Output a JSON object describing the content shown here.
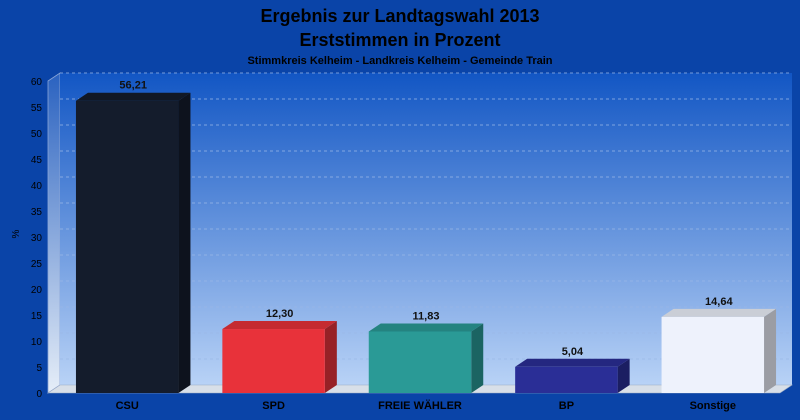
{
  "chart_data": {
    "type": "bar",
    "title": "Ergebnis zur Landtagswahl 2013",
    "subtitle": "Erststimmen in Prozent",
    "subsubtitle": "Stimmkreis Kelheim - Landkreis Kelheim - Gemeinde Train",
    "ylabel": "%",
    "xlabel": "",
    "ylim": [
      0,
      60
    ],
    "yticks": [
      "0",
      "5",
      "10",
      "15",
      "20",
      "25",
      "30",
      "35",
      "40",
      "45",
      "50",
      "55",
      "60"
    ],
    "categories": [
      "CSU",
      "SPD",
      "FREIE WÄHLER",
      "BP",
      "Sonstige"
    ],
    "values": [
      56.21,
      12.3,
      11.83,
      5.04,
      14.64
    ],
    "value_labels": [
      "56,21",
      "12,30",
      "11,83",
      "5,04",
      "14,64"
    ],
    "colors": [
      "#141c2c",
      "#e8323a",
      "#2a9a96",
      "#2a2e96",
      "#eef2fc"
    ],
    "grid": true,
    "legend": "none",
    "background": "#0a44a8"
  }
}
